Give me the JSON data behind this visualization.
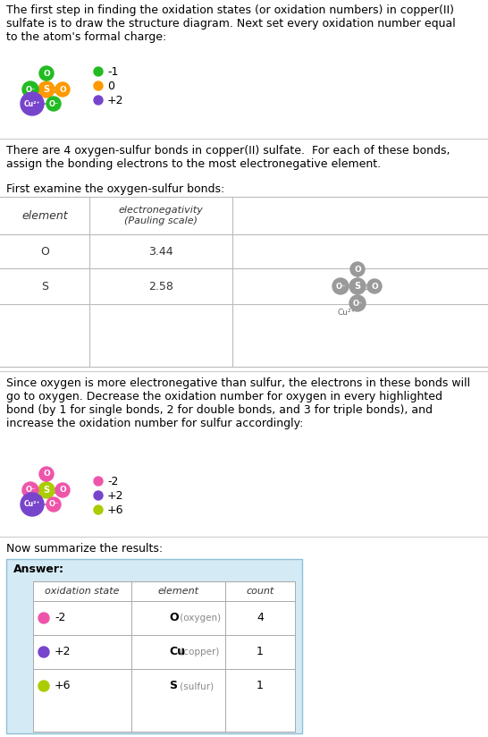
{
  "title_text": "The first step in finding the oxidation states (or oxidation numbers) in copper(II)\nsulfate is to draw the structure diagram. Next set every oxidation number equal\nto the atom's formal charge:",
  "section2_text": "There are 4 oxygen-sulfur bonds in copper(II) sulfate.  For each of these bonds,\nassign the bonding electrons to the most electronegative element.",
  "section2b_text": "First examine the oxygen-sulfur bonds:",
  "section3_text": "Since oxygen is more electronegative than sulfur, the electrons in these bonds will\ngo to oxygen. Decrease the oxidation number for oxygen in every highlighted\nbond (by 1 for single bonds, 2 for double bonds, and 3 for triple bonds), and\nincrease the oxidation number for sulfur accordingly:",
  "section4_text": "Now summarize the results:",
  "legend1": [
    {
      "color": "#22bb22",
      "label": "-1"
    },
    {
      "color": "#ff9900",
      "label": "0"
    },
    {
      "color": "#7744cc",
      "label": "+2"
    }
  ],
  "legend2": [
    {
      "color": "#ee55aa",
      "label": "-2"
    },
    {
      "color": "#7744cc",
      "label": "+2"
    },
    {
      "color": "#aacc00",
      "label": "+6"
    }
  ],
  "answer_rows": [
    {
      "color": "#ee55aa",
      "state": "-2",
      "element": "O",
      "element_name": "oxygen",
      "count": "4"
    },
    {
      "color": "#7744cc",
      "state": "+2",
      "element": "Cu",
      "element_name": "copper",
      "count": "1"
    },
    {
      "color": "#aacc00",
      "state": "+6",
      "element": "S",
      "element_name": "sulfur",
      "count": "1"
    }
  ],
  "bg_color": "#ffffff",
  "answer_bg": "#d4eaf5",
  "divider_color": "#cccccc",
  "font_size_text": 9.0,
  "font_size_small": 8.0,
  "font_size_mono": 9.0
}
